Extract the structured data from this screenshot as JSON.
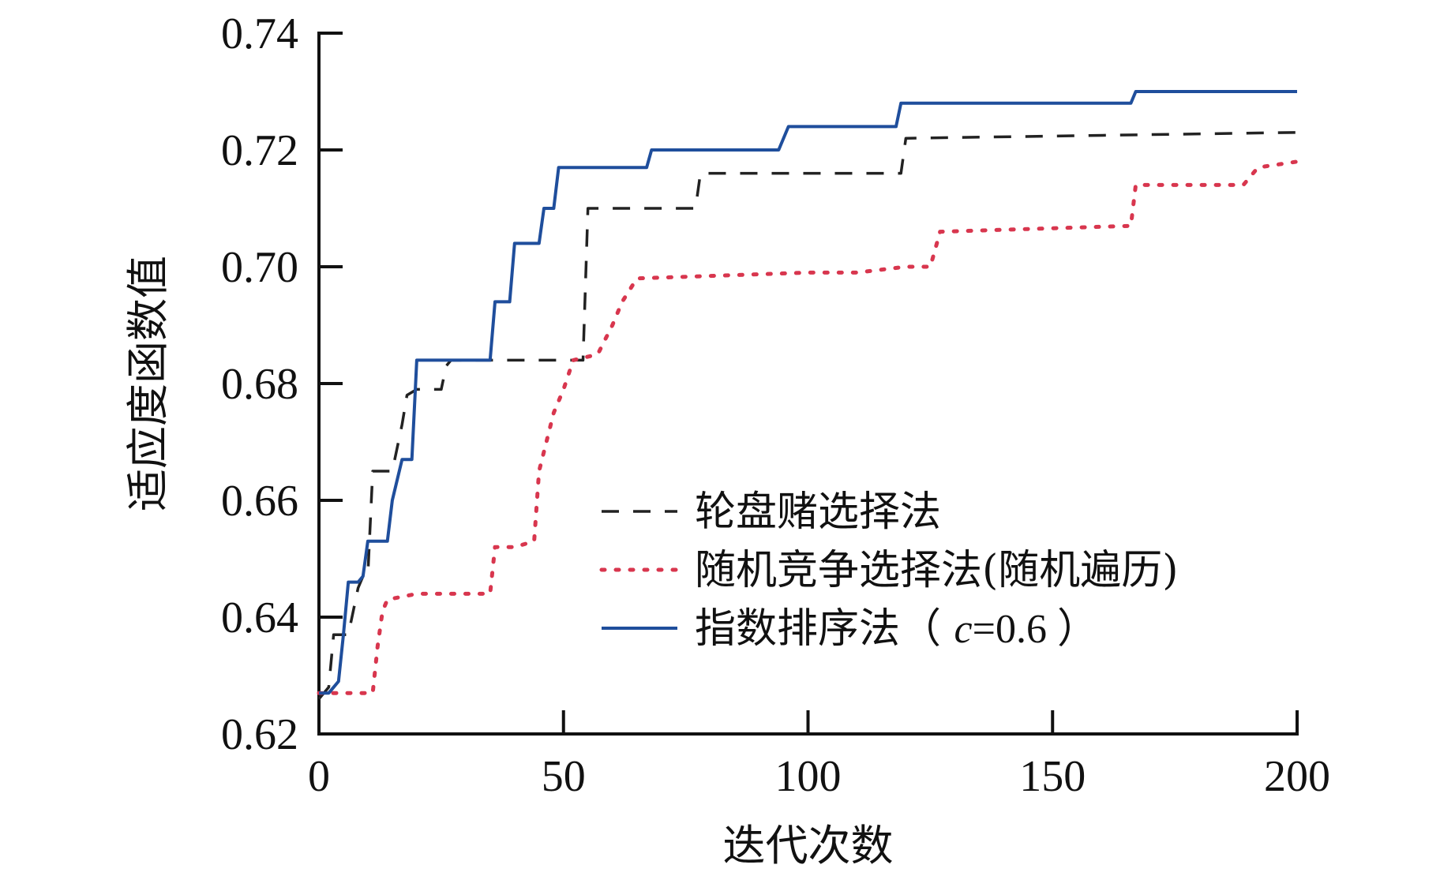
{
  "chart_data": {
    "type": "line",
    "title": "",
    "xlabel": "迭代次数",
    "ylabel": "适应度函数值",
    "xlim": [
      0,
      200
    ],
    "ylim": [
      0.62,
      0.74
    ],
    "xticks": [
      0,
      50,
      100,
      150,
      200
    ],
    "xtick_labels": [
      "0",
      "50",
      "100",
      "150",
      "200"
    ],
    "yticks": [
      0.62,
      0.64,
      0.66,
      0.68,
      0.7,
      0.72,
      0.74
    ],
    "ytick_labels": [
      "0.62",
      "0.64",
      "0.66",
      "0.68",
      "0.70",
      "0.72",
      "0.74"
    ],
    "grid": false,
    "legend_position": "lower-right",
    "series": [
      {
        "name": "轮盘赌选择法",
        "color": "#222222",
        "line_style": "dashed",
        "x": [
          0,
          2,
          3,
          6,
          8,
          9,
          10,
          11,
          15,
          17,
          18,
          20,
          25,
          26,
          27,
          35,
          54,
          55,
          77,
          78,
          119,
          120,
          200
        ],
        "y": [
          0.626,
          0.628,
          0.637,
          0.637,
          0.645,
          0.647,
          0.647,
          0.665,
          0.665,
          0.673,
          0.678,
          0.679,
          0.679,
          0.683,
          0.684,
          0.684,
          0.684,
          0.71,
          0.71,
          0.716,
          0.716,
          0.722,
          0.723
        ]
      },
      {
        "name": "随机竞争选择法(随机遍历)",
        "color": "#d8364e",
        "line_style": "dotted",
        "x": [
          0,
          11,
          12,
          13,
          14,
          20,
          35,
          36,
          40,
          44,
          45,
          48,
          50,
          52,
          57,
          60,
          62,
          65,
          100,
          110,
          120,
          125,
          127,
          166,
          167,
          189,
          192,
          200
        ],
        "y": [
          0.627,
          0.627,
          0.635,
          0.641,
          0.643,
          0.644,
          0.644,
          0.652,
          0.652,
          0.653,
          0.665,
          0.675,
          0.679,
          0.684,
          0.685,
          0.69,
          0.694,
          0.698,
          0.699,
          0.699,
          0.7,
          0.7,
          0.706,
          0.707,
          0.714,
          0.714,
          0.717,
          0.718
        ]
      },
      {
        "name": "指数排序法（c=0.6）",
        "color": "#1f4e9c",
        "line_style": "solid",
        "x": [
          0,
          2,
          3,
          4,
          5,
          6,
          8,
          9,
          10,
          14,
          15,
          17,
          19,
          20,
          22,
          35,
          36,
          39,
          40,
          45,
          46,
          48,
          49,
          67,
          68,
          94,
          96,
          118,
          119,
          166,
          167,
          200
        ],
        "y": [
          0.627,
          0.627,
          0.628,
          0.629,
          0.637,
          0.646,
          0.646,
          0.647,
          0.653,
          0.653,
          0.66,
          0.667,
          0.667,
          0.684,
          0.684,
          0.684,
          0.694,
          0.694,
          0.704,
          0.704,
          0.71,
          0.71,
          0.717,
          0.717,
          0.72,
          0.72,
          0.724,
          0.724,
          0.728,
          0.728,
          0.73,
          0.73
        ]
      }
    ],
    "legend": {
      "entries": [
        {
          "text": "轮盘赌选择法"
        },
        {
          "text": "随机竞争选择法(随机遍历)"
        },
        {
          "text_main": "指数排序法（ ",
          "text_italic": "c",
          "text_tail": "=0.6 ）"
        }
      ]
    }
  }
}
